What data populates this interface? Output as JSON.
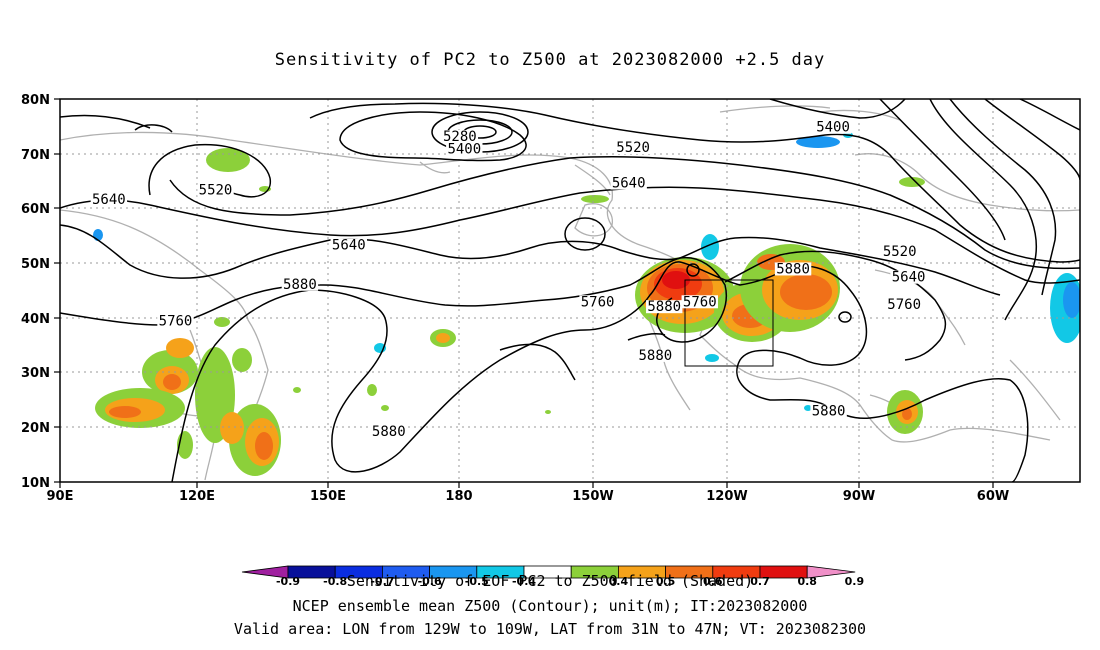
{
  "title": "Sensitivity of PC2 to Z500 at 2023082000 +2.5 day",
  "axes": {
    "lat_labels": [
      "80N",
      "70N",
      "60N",
      "50N",
      "40N",
      "30N",
      "20N",
      "10N"
    ],
    "lon_labels": [
      "90E",
      "120E",
      "150E",
      "180",
      "150W",
      "120W",
      "90W",
      "60W"
    ]
  },
  "contour_labels": [
    {
      "text": "5280",
      "lon": 180,
      "lat": 72.5
    },
    {
      "text": "5400",
      "lon": 181,
      "lat": 70.2
    },
    {
      "text": "5400",
      "lon": -96,
      "lat": 74.2
    },
    {
      "text": "5520",
      "lon": -141,
      "lat": 70.5
    },
    {
      "text": "5520",
      "lon": 125,
      "lat": 62.7
    },
    {
      "text": "5520",
      "lon": -81,
      "lat": 51.5
    },
    {
      "text": "5640",
      "lon": 101,
      "lat": 61.0
    },
    {
      "text": "5640",
      "lon": -142,
      "lat": 64.0
    },
    {
      "text": "5640",
      "lon": 155,
      "lat": 52.7
    },
    {
      "text": "5640",
      "lon": -79,
      "lat": 46.8
    },
    {
      "text": "5760",
      "lon": 116,
      "lat": 38.8
    },
    {
      "text": "5760",
      "lon": -149,
      "lat": 42.3
    },
    {
      "text": "5760",
      "lon": -126,
      "lat": 42.3
    },
    {
      "text": "5760",
      "lon": -80,
      "lat": 41.8
    },
    {
      "text": "5880",
      "lon": 144,
      "lat": 45.5
    },
    {
      "text": "5880",
      "lon": -134,
      "lat": 41.4
    },
    {
      "text": "5880",
      "lon": -136,
      "lat": 32.5
    },
    {
      "text": "5880",
      "lon": -105,
      "lat": 48.3
    },
    {
      "text": "5880",
      "lon": 164,
      "lat": 18.6
    },
    {
      "text": "5880",
      "lon": -97,
      "lat": 22.3
    }
  ],
  "colorbar": {
    "tick_labels": [
      "-0.9",
      "-0.8",
      "-0.7",
      "-0.6",
      "-0.5",
      "-0.4",
      "0.4",
      "0.5",
      "0.6",
      "0.7",
      "0.8",
      "0.9"
    ],
    "colors": [
      "#a020a0",
      "#08109a",
      "#0a2de0",
      "#1f5cf0",
      "#1a96f0",
      "#12c8e6",
      "#ffffff",
      "#8cd03a",
      "#f5a21a",
      "#f07018",
      "#f03c10",
      "#e01010",
      "#f090c8"
    ]
  },
  "caption": {
    "line1": "Sensitivity of EOF PC2 to Z500 field (Shaded)",
    "line2": "NCEP ensemble mean Z500 (Contour); unit(m); IT:2023082000",
    "line3": "Valid area: LON from 129W to 109W, LAT from 31N to 47N; VT: 2023082300"
  },
  "valid_area": {
    "lon_west": -129,
    "lon_east": -109,
    "lat_south": 31,
    "lat_north": 47
  }
}
